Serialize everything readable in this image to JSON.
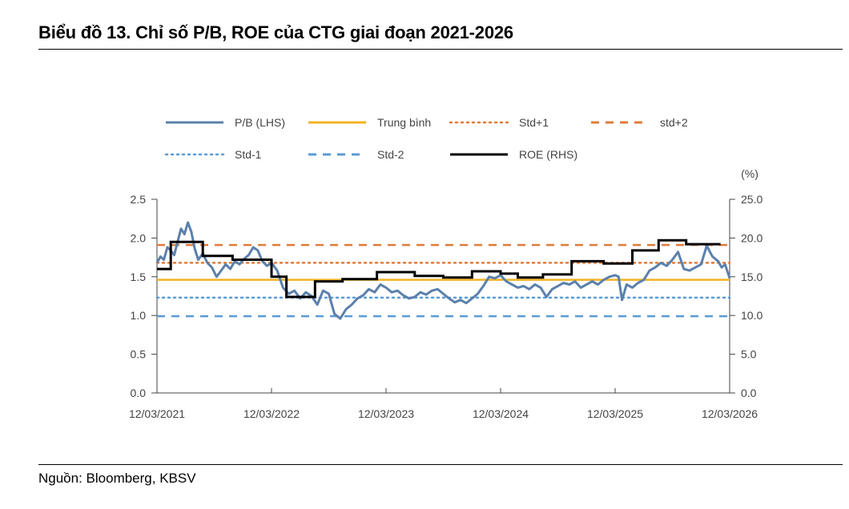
{
  "header": {
    "title": "Biểu đồ 13. Chỉ số P/B, ROE của CTG giai đoạn 2021-2026"
  },
  "footer": {
    "source": "Nguồn: Bloomberg, KBSV"
  },
  "colors": {
    "pb": "#5b80ab",
    "mean": "#f0b323",
    "std_plus_1": "#e07b39",
    "std_plus_2": "#e07b39",
    "std_minus_1": "#5b9bd5",
    "std_minus_2": "#5b9bd5",
    "roe": "#000000",
    "axis": "#444444"
  },
  "chart_data": {
    "type": "line",
    "title": "Biểu đồ 13. Chỉ số P/B, ROE của CTG giai đoạn 2021-2026",
    "xlabel": "",
    "ylabel_left": "",
    "ylabel_right": "(%)",
    "x_range": [
      "2021-03-12",
      "2026-03-12"
    ],
    "x_tick_labels": [
      "12/03/2021",
      "12/03/2022",
      "12/03/2023",
      "12/03/2024",
      "12/03/2025",
      "12/03/2026"
    ],
    "ylim_left": [
      0,
      2.5
    ],
    "y_ticks_left": [
      "0.0",
      "0.5",
      "1.0",
      "1.5",
      "2.0",
      "2.5"
    ],
    "ylim_right": [
      0,
      25
    ],
    "y_ticks_right": [
      "0.0",
      "5.0",
      "10.0",
      "15.0",
      "20.0",
      "25.0"
    ],
    "grid": false,
    "legend_position": "top",
    "legend": [
      {
        "key": "pb",
        "label": "P/B (LHS)",
        "style": "solid"
      },
      {
        "key": "mean",
        "label": "Trung bình",
        "style": "solid"
      },
      {
        "key": "std_plus_1",
        "label": "Std+1",
        "style": "dotted"
      },
      {
        "key": "std_plus_2",
        "label": "std+2",
        "style": "dashed"
      },
      {
        "key": "std_minus_1",
        "label": "Std-1",
        "style": "dotted"
      },
      {
        "key": "std_minus_2",
        "label": "Std-2",
        "style": "dashed"
      },
      {
        "key": "roe",
        "label": "ROE (RHS)",
        "style": "solid"
      }
    ],
    "reference_lines": {
      "mean": 1.46,
      "std_plus_1": 1.68,
      "std_plus_2": 1.91,
      "std_minus_1": 1.23,
      "std_minus_2": 0.99
    },
    "series": [
      {
        "name": "P/B (LHS)",
        "key": "pb",
        "axis": "left",
        "x_years": [
          2021.0,
          2021.03,
          2021.06,
          2021.09,
          2021.12,
          2021.15,
          2021.18,
          2021.21,
          2021.24,
          2021.27,
          2021.3,
          2021.33,
          2021.36,
          2021.4,
          2021.44,
          2021.48,
          2021.52,
          2021.56,
          2021.6,
          2021.64,
          2021.68,
          2021.72,
          2021.76,
          2021.8,
          2021.84,
          2021.88,
          2021.92,
          2021.96,
          2022.0,
          2022.05,
          2022.1,
          2022.15,
          2022.2,
          2022.25,
          2022.3,
          2022.35,
          2022.4,
          2022.45,
          2022.5,
          2022.55,
          2022.6,
          2022.65,
          2022.7,
          2022.75,
          2022.8,
          2022.85,
          2022.9,
          2022.95,
          2023.0,
          2023.05,
          2023.1,
          2023.15,
          2023.2,
          2023.25,
          2023.3,
          2023.35,
          2023.4,
          2023.45,
          2023.5,
          2023.55,
          2023.6,
          2023.65,
          2023.7,
          2023.75,
          2023.8,
          2023.85,
          2023.9,
          2023.95,
          2024.0,
          2024.05,
          2024.1,
          2024.15,
          2024.2,
          2024.25,
          2024.3,
          2024.35,
          2024.4,
          2024.45,
          2024.5,
          2024.55,
          2024.6,
          2024.65,
          2024.7,
          2024.75,
          2024.8,
          2024.85,
          2024.9,
          2024.95,
          2025.0,
          2025.03,
          2025.06,
          2025.1,
          2025.15,
          2025.2,
          2025.25,
          2025.3,
          2025.35,
          2025.4,
          2025.45,
          2025.5,
          2025.55,
          2025.6,
          2025.65,
          2025.7,
          2025.75,
          2025.8,
          2025.85,
          2025.9,
          2025.93,
          2025.96,
          2026.0
        ],
        "values": [
          1.68,
          1.76,
          1.72,
          1.88,
          1.84,
          1.78,
          1.95,
          2.12,
          2.05,
          2.2,
          2.08,
          1.86,
          1.72,
          1.8,
          1.68,
          1.62,
          1.5,
          1.58,
          1.66,
          1.6,
          1.7,
          1.66,
          1.73,
          1.78,
          1.88,
          1.84,
          1.7,
          1.64,
          1.68,
          1.58,
          1.36,
          1.28,
          1.32,
          1.22,
          1.3,
          1.25,
          1.14,
          1.32,
          1.28,
          1.02,
          0.96,
          1.08,
          1.14,
          1.22,
          1.26,
          1.34,
          1.3,
          1.4,
          1.36,
          1.3,
          1.32,
          1.26,
          1.22,
          1.24,
          1.3,
          1.27,
          1.32,
          1.34,
          1.28,
          1.22,
          1.17,
          1.2,
          1.16,
          1.22,
          1.28,
          1.38,
          1.5,
          1.48,
          1.52,
          1.44,
          1.4,
          1.36,
          1.38,
          1.34,
          1.4,
          1.36,
          1.24,
          1.34,
          1.38,
          1.42,
          1.4,
          1.44,
          1.36,
          1.4,
          1.44,
          1.4,
          1.46,
          1.5,
          1.52,
          1.5,
          1.2,
          1.4,
          1.36,
          1.42,
          1.46,
          1.58,
          1.62,
          1.68,
          1.64,
          1.72,
          1.82,
          1.6,
          1.58,
          1.62,
          1.66,
          1.9,
          1.76,
          1.7,
          1.62,
          1.66,
          1.48
        ]
      },
      {
        "name": "ROE (RHS)",
        "key": "roe",
        "axis": "right",
        "step_x_years": [
          2021.0,
          2021.12,
          2021.4,
          2021.66,
          2022.0,
          2022.13,
          2022.38,
          2022.62,
          2022.92,
          2023.25,
          2023.5,
          2023.75,
          2024.0,
          2024.15,
          2024.37,
          2024.62,
          2024.9,
          2025.15,
          2025.38,
          2025.62,
          2025.92
        ],
        "values": [
          16.0,
          19.5,
          17.7,
          17.2,
          15.0,
          12.4,
          14.4,
          14.7,
          15.6,
          15.1,
          14.9,
          15.7,
          15.4,
          14.9,
          15.3,
          17.0,
          16.7,
          18.4,
          19.7,
          19.2
        ]
      }
    ]
  }
}
